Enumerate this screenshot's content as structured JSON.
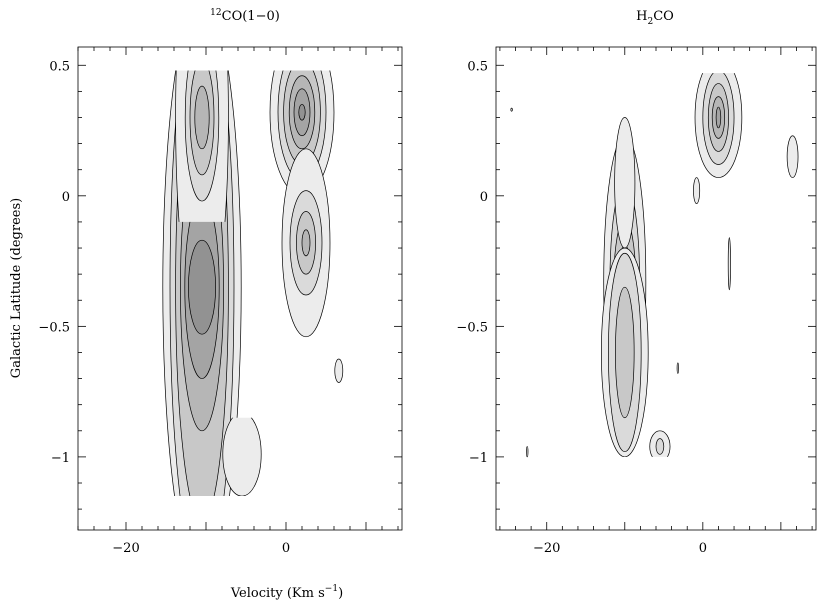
{
  "figure": {
    "xlabel_main": "Velocity (Km s",
    "xlabel_exp": "−1",
    "xlabel_close": ")",
    "ylabel": "Galactic Latitude (degrees)"
  },
  "chart_data": [
    {
      "type": "heatmap",
      "title_sup": "12",
      "title_main": "CO(1−0)",
      "xlabel": "Velocity (Km s^-1)",
      "ylabel": "Galactic Latitude (degrees)",
      "xlim": [
        -26,
        14.5
      ],
      "ylim": [
        -1.28,
        0.57
      ],
      "x_ticks": [
        -20,
        0
      ],
      "x_tick_labels": [
        "−20",
        "0"
      ],
      "y_ticks": [
        0.5,
        0,
        -0.5,
        -1
      ],
      "y_tick_labels": [
        "0.5",
        "0",
        "−0.5",
        "−1"
      ],
      "fill_colors": [
        "#ececec",
        "#dadada",
        "#c8c8c8",
        "#b6b6b6",
        "#a4a4a4",
        "#929292",
        "#808080",
        "#6e6e6e"
      ],
      "features": [
        {
          "cx": -10.5,
          "cy": -0.35,
          "rx": [
            1.7,
            2.15,
            2.7,
            3.3,
            4.0,
            4.9
          ],
          "ry": [
            0.18,
            0.35,
            0.55,
            0.9,
            1.1,
            1.12
          ],
          "top": 0.48,
          "bottom": -1.15
        },
        {
          "cx": -10.5,
          "cy": 0.3,
          "rx": [
            0.9,
            1.5,
            2.1,
            3.3
          ],
          "ry": [
            0.12,
            0.22,
            0.32,
            0.8
          ],
          "top": 0.48,
          "bottom": -0.1
        },
        {
          "cx": 2.0,
          "cy": 0.32,
          "rx": [
            0.4,
            1.0,
            1.6,
            2.3,
            3.0,
            4.0
          ],
          "ry": [
            0.03,
            0.09,
            0.14,
            0.2,
            0.26,
            0.32
          ],
          "top": 0.48,
          "bottom": -0.1
        },
        {
          "cx": 2.5,
          "cy": -0.18,
          "rx": [
            0.5,
            1.2,
            2.0,
            3.0
          ],
          "ry": [
            0.05,
            0.12,
            0.2,
            0.36
          ],
          "top": 0.2,
          "bottom": -0.55
        },
        {
          "cx": -5.5,
          "cy": -0.99,
          "rx": [
            2.4
          ],
          "ry": [
            0.16
          ],
          "top": -0.85,
          "bottom": -1.15
        },
        {
          "cx": 6.6,
          "cy": -0.67,
          "rx": [
            0.5
          ],
          "ry": [
            0.045
          ],
          "top": 1,
          "bottom": -2
        }
      ]
    },
    {
      "type": "heatmap",
      "title_main": "H",
      "title_sub": "2",
      "title_tail": "CO",
      "xlabel": "Velocity (Km s^-1)",
      "ylabel": "Galactic Latitude (degrees)",
      "xlim": [
        -26.5,
        14.5
      ],
      "ylim": [
        -1.28,
        0.57
      ],
      "x_ticks": [
        -20,
        0
      ],
      "x_tick_labels": [
        "−20",
        "0"
      ],
      "y_ticks": [
        0.5,
        0,
        -0.5,
        -1
      ],
      "y_tick_labels": [
        "0.5",
        "0",
        "−0.5",
        "−1"
      ],
      "fill_colors": [
        "#ececec",
        "#dadada",
        "#c8c8c8",
        "#b6b6b6",
        "#a4a4a4",
        "#929292",
        "#808080",
        "#6e6e6e"
      ],
      "features": [
        {
          "cx": -10.0,
          "cy": -0.33,
          "rx": [
            0.5,
            0.9,
            1.4,
            1.9,
            2.7
          ],
          "ry": [
            0.08,
            0.14,
            0.24,
            0.38,
            0.56
          ],
          "top": 0.5,
          "bottom": -1.0
        },
        {
          "cx": -10.0,
          "cy": -0.6,
          "rx": [
            1.2,
            2.1,
            3.0
          ],
          "ry": [
            0.25,
            0.38,
            0.4
          ],
          "top": 0.5,
          "bottom": -1.0
        },
        {
          "cx": -10.0,
          "cy": 0.05,
          "rx": [
            1.3
          ],
          "ry": [
            0.25
          ],
          "top": 0.5,
          "bottom": -1.0
        },
        {
          "cx": 2.0,
          "cy": 0.3,
          "rx": [
            0.3,
            0.8,
            1.3,
            2.0,
            3.0
          ],
          "ry": [
            0.04,
            0.08,
            0.13,
            0.18,
            0.23
          ],
          "top": 0.47,
          "bottom": -0.05
        },
        {
          "cx": -5.5,
          "cy": -0.96,
          "rx": [
            0.5,
            1.3
          ],
          "ry": [
            0.03,
            0.06
          ],
          "top": -0.85,
          "bottom": -1.0
        },
        {
          "cx": 11.5,
          "cy": 0.15,
          "rx": [
            0.7
          ],
          "ry": [
            0.08
          ],
          "top": 1,
          "bottom": -2
        },
        {
          "cx": 3.4,
          "cy": -0.26,
          "rx": [
            0.15
          ],
          "ry": [
            0.1
          ],
          "top": 1,
          "bottom": -2
        },
        {
          "cx": -0.8,
          "cy": 0.02,
          "rx": [
            0.4
          ],
          "ry": [
            0.05
          ],
          "top": 1,
          "bottom": -2
        },
        {
          "cx": -3.2,
          "cy": -0.66,
          "rx": [
            0.1
          ],
          "ry": [
            0.02
          ],
          "top": 1,
          "bottom": -2
        },
        {
          "cx": -24.5,
          "cy": 0.33,
          "rx": [
            0.1
          ],
          "ry": [
            0.006
          ],
          "top": 1,
          "bottom": -2
        },
        {
          "cx": -22.5,
          "cy": -0.98,
          "rx": [
            0.1
          ],
          "ry": [
            0.02
          ],
          "top": 1,
          "bottom": -2
        }
      ]
    }
  ]
}
